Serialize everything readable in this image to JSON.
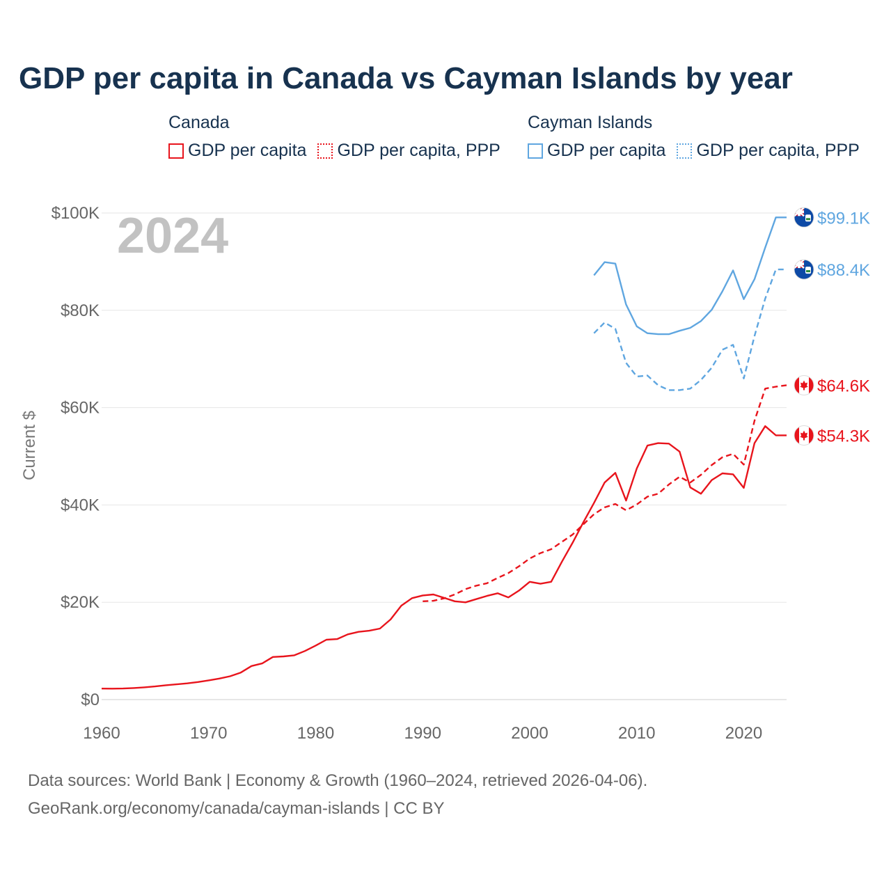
{
  "title": "GDP per capita in Canada vs Cayman Islands by year",
  "legend": {
    "groups": [
      {
        "name": "Canada",
        "color": "#e8141c",
        "items": [
          {
            "label": "GDP per capita",
            "style": "solid"
          },
          {
            "label": "GDP per capita, PPP",
            "style": "dotted"
          }
        ]
      },
      {
        "name": "Cayman Islands",
        "color": "#5fa6e0",
        "items": [
          {
            "label": "GDP per capita",
            "style": "solid"
          },
          {
            "label": "GDP per capita, PPP",
            "style": "dotted"
          }
        ]
      }
    ]
  },
  "footer": {
    "line1": "Data sources: World Bank | Economy & Growth (1960–2024, retrieved 2026-04-06).",
    "line2": "GeoRank.org/economy/canada/cayman-islands | CC BY"
  },
  "chart_data": {
    "type": "line",
    "title": "GDP per capita in Canada vs Cayman Islands by year",
    "year_label": "2024",
    "xlabel": "",
    "ylabel": "Current $",
    "xlim": [
      1960,
      2024
    ],
    "ylim": [
      0,
      100000
    ],
    "x_ticks": [
      1960,
      1970,
      1980,
      1990,
      2000,
      2010,
      2020
    ],
    "y_ticks": [
      {
        "value": 0,
        "label": "$0"
      },
      {
        "value": 20000,
        "label": "$20K"
      },
      {
        "value": 40000,
        "label": "$40K"
      },
      {
        "value": 60000,
        "label": "$60K"
      },
      {
        "value": 80000,
        "label": "$80K"
      },
      {
        "value": 100000,
        "label": "$100K"
      }
    ],
    "grid": true,
    "series": [
      {
        "name": "Canada GDP per capita",
        "country": "Canada",
        "color": "#e8141c",
        "dash": "solid",
        "end_label": "$54.3K",
        "x": [
          1960,
          1961,
          1962,
          1963,
          1964,
          1965,
          1966,
          1967,
          1968,
          1969,
          1970,
          1971,
          1972,
          1973,
          1974,
          1975,
          1976,
          1977,
          1978,
          1979,
          1980,
          1981,
          1982,
          1983,
          1984,
          1985,
          1986,
          1987,
          1988,
          1989,
          1990,
          1991,
          1992,
          1993,
          1994,
          1995,
          1996,
          1997,
          1998,
          1999,
          2000,
          2001,
          2002,
          2003,
          2004,
          2005,
          2006,
          2007,
          2008,
          2009,
          2010,
          2011,
          2012,
          2013,
          2014,
          2015,
          2016,
          2017,
          2018,
          2019,
          2020,
          2021,
          2022,
          2023,
          2024
        ],
        "y": [
          2260,
          2240,
          2270,
          2380,
          2520,
          2710,
          2950,
          3130,
          3340,
          3600,
          3950,
          4320,
          4790,
          5550,
          6890,
          7430,
          8760,
          8870,
          9100,
          9990,
          11100,
          12300,
          12430,
          13400,
          13920,
          14150,
          14590,
          16460,
          19300,
          20850,
          21400,
          21600,
          20900,
          20200,
          19990,
          20650,
          21300,
          21850,
          21000,
          22400,
          24200,
          23800,
          24200,
          28300,
          32200,
          36400,
          40400,
          44600,
          46600,
          40900,
          47500,
          52200,
          52700,
          52600,
          50960,
          43600,
          42300,
          45100,
          46500,
          46300,
          43500,
          52700,
          56200,
          54300,
          54300
        ]
      },
      {
        "name": "Canada GDP per capita, PPP",
        "country": "Canada",
        "color": "#e8141c",
        "dash": "dash",
        "end_label": "$64.6K",
        "x": [
          1990,
          1991,
          1992,
          1993,
          1994,
          1995,
          1996,
          1997,
          1998,
          1999,
          2000,
          2001,
          2002,
          2003,
          2004,
          2005,
          2006,
          2007,
          2008,
          2009,
          2010,
          2011,
          2012,
          2013,
          2014,
          2015,
          2016,
          2017,
          2018,
          2019,
          2020,
          2021,
          2022,
          2023,
          2024
        ],
        "y": [
          20200,
          20300,
          20800,
          21600,
          22700,
          23400,
          23900,
          25000,
          26000,
          27400,
          29000,
          30100,
          30900,
          32400,
          33900,
          36000,
          38100,
          39500,
          40200,
          38900,
          40100,
          41700,
          42300,
          44200,
          45800,
          44600,
          46200,
          48200,
          49800,
          50500,
          48300,
          57300,
          63900,
          64300,
          64600
        ]
      },
      {
        "name": "Cayman Islands GDP per capita",
        "country": "Cayman Islands",
        "color": "#5fa6e0",
        "dash": "solid",
        "end_label": "$99.1K",
        "x": [
          2006,
          2007,
          2008,
          2009,
          2010,
          2011,
          2012,
          2013,
          2014,
          2015,
          2016,
          2017,
          2018,
          2019,
          2020,
          2021,
          2022,
          2023,
          2024
        ],
        "y": [
          87200,
          89900,
          89600,
          81200,
          76700,
          75300,
          75100,
          75100,
          75800,
          76400,
          77800,
          80100,
          83900,
          88200,
          82300,
          86400,
          92900,
          99100,
          99100
        ]
      },
      {
        "name": "Cayman Islands GDP per capita, PPP",
        "country": "Cayman Islands",
        "color": "#5fa6e0",
        "dash": "dash",
        "end_label": "$88.4K",
        "x": [
          2006,
          2007,
          2008,
          2009,
          2010,
          2011,
          2012,
          2013,
          2014,
          2015,
          2016,
          2017,
          2018,
          2019,
          2020,
          2021,
          2022,
          2023,
          2024
        ],
        "y": [
          75300,
          77500,
          76200,
          69200,
          66400,
          66600,
          64600,
          63600,
          63600,
          63900,
          65700,
          68200,
          71900,
          72900,
          66000,
          74700,
          82400,
          88400,
          88400
        ]
      }
    ]
  }
}
